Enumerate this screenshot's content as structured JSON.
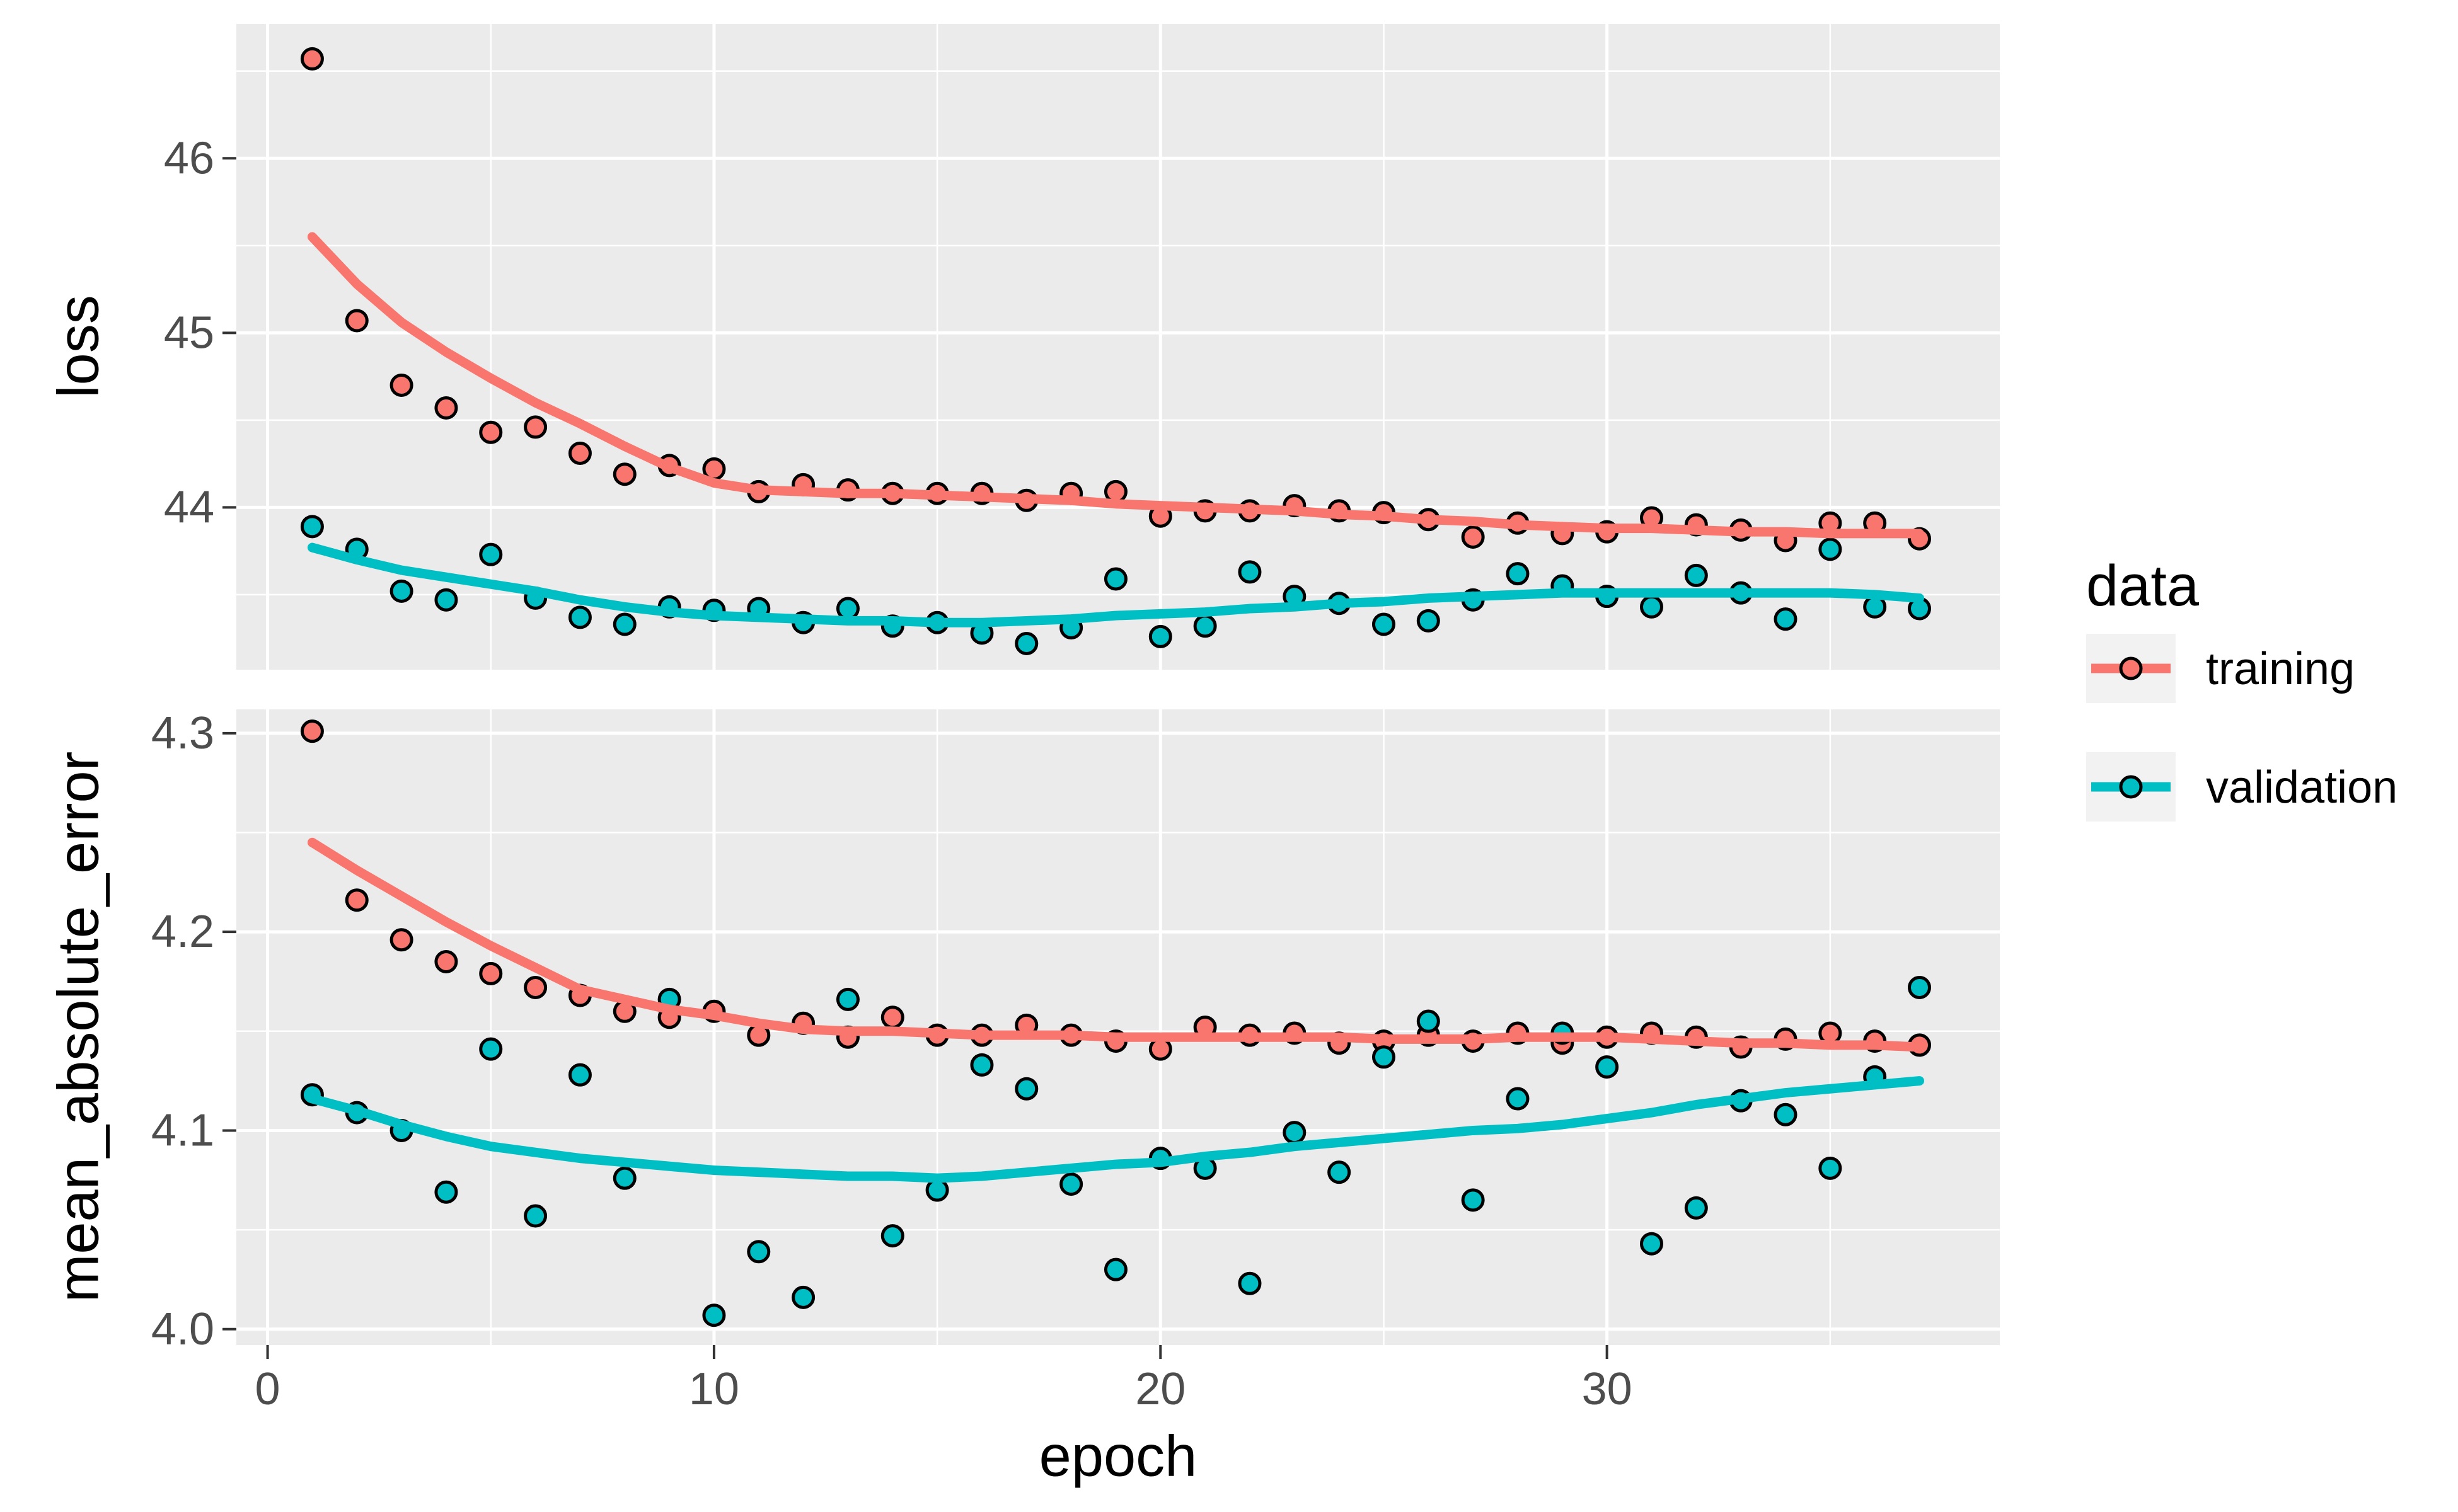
{
  "figure": {
    "background": "#FFFFFF",
    "panel_background": "#EBEBEB",
    "grid_color": "#FFFFFF",
    "tick_mark_color": "#333333",
    "tick_label_color": "#4D4D4D"
  },
  "legend": {
    "title": "data",
    "key_background": "#F2F2F2",
    "items": [
      {
        "label": "training",
        "color": "#F8766D"
      },
      {
        "label": "validation",
        "color": "#00BFC4"
      }
    ]
  },
  "chart_data": {
    "type": "scatter",
    "xlabel": "epoch",
    "x": [
      1,
      2,
      3,
      4,
      5,
      6,
      7,
      8,
      9,
      10,
      11,
      12,
      13,
      14,
      15,
      16,
      17,
      18,
      19,
      20,
      21,
      22,
      23,
      24,
      25,
      26,
      27,
      28,
      29,
      30,
      31,
      32,
      33,
      34,
      35,
      36,
      37
    ],
    "xlim": [
      -0.7,
      38.8
    ],
    "x_tick_values": [
      0,
      10,
      20,
      30
    ],
    "x_tick_labels": [
      "0",
      "10",
      "20",
      "30"
    ],
    "x_minor": [
      5,
      15,
      25,
      35
    ],
    "grid": true,
    "legend_position": "right",
    "facets": [
      {
        "ylabel": "loss",
        "ylim": [
          43.07,
          46.77
        ],
        "y_tick_values": [
          44,
          45,
          46
        ],
        "y_tick_labels": [
          "44",
          "45",
          "46"
        ],
        "y_minor": [
          43.5,
          44.5,
          45.5,
          46.5
        ],
        "series": [
          {
            "name": "training",
            "color": "#F8766D",
            "values": [
              46.57,
              45.07,
              44.7,
              44.57,
              44.43,
              44.46,
              44.31,
              44.19,
              44.24,
              44.22,
              44.09,
              44.13,
              44.1,
              44.08,
              44.08,
              44.08,
              44.04,
              44.08,
              44.09,
              43.95,
              43.98,
              43.98,
              44.01,
              43.98,
              43.97,
              43.93,
              43.83,
              43.91,
              43.85,
              43.86,
              43.94,
              43.9,
              43.87,
              43.81,
              43.91,
              43.91,
              43.82
            ],
            "smooth": [
              45.55,
              45.28,
              45.06,
              44.89,
              44.74,
              44.6,
              44.48,
              44.35,
              44.23,
              44.14,
              44.1,
              44.09,
              44.08,
              44.08,
              44.07,
              44.06,
              44.05,
              44.04,
              44.02,
              44.01,
              44.0,
              43.99,
              43.98,
              43.96,
              43.95,
              43.93,
              43.92,
              43.9,
              43.89,
              43.88,
              43.88,
              43.87,
              43.86,
              43.86,
              43.85,
              43.85,
              43.85
            ]
          },
          {
            "name": "validation",
            "color": "#00BFC4",
            "values": [
              43.89,
              43.76,
              43.52,
              43.47,
              43.73,
              43.48,
              43.37,
              43.33,
              43.43,
              43.41,
              43.42,
              43.34,
              43.42,
              43.32,
              43.34,
              43.28,
              43.22,
              43.31,
              43.59,
              43.26,
              43.32,
              43.63,
              43.49,
              43.45,
              43.33,
              43.35,
              43.47,
              43.62,
              43.55,
              43.49,
              43.43,
              43.61,
              43.51,
              43.36,
              43.76,
              43.43,
              43.42
            ],
            "smooth": [
              43.77,
              43.7,
              43.64,
              43.6,
              43.56,
              43.52,
              43.47,
              43.43,
              43.4,
              43.38,
              43.37,
              43.36,
              43.35,
              43.35,
              43.34,
              43.34,
              43.35,
              43.36,
              43.38,
              43.39,
              43.4,
              43.42,
              43.43,
              43.45,
              43.46,
              43.48,
              43.49,
              43.5,
              43.51,
              43.51,
              43.51,
              43.51,
              43.51,
              43.51,
              43.51,
              43.5,
              43.48
            ]
          }
        ]
      },
      {
        "ylabel": "mean_absolute_error",
        "ylim": [
          3.992,
          4.312
        ],
        "y_tick_values": [
          4.0,
          4.1,
          4.2,
          4.3
        ],
        "y_tick_labels": [
          "4.0",
          "4.1",
          "4.2",
          "4.3"
        ],
        "y_minor": [
          4.05,
          4.15,
          4.25
        ],
        "series": [
          {
            "name": "training",
            "color": "#F8766D",
            "values": [
              4.301,
              4.216,
              4.196,
              4.185,
              4.179,
              4.172,
              4.168,
              4.16,
              4.157,
              4.16,
              4.148,
              4.154,
              4.147,
              4.157,
              4.148,
              4.148,
              4.153,
              4.148,
              4.145,
              4.141,
              4.152,
              4.148,
              4.149,
              4.144,
              4.145,
              4.148,
              4.145,
              4.149,
              4.144,
              4.147,
              4.149,
              4.147,
              4.142,
              4.146,
              4.149,
              4.145,
              4.143
            ],
            "smooth": [
              4.245,
              4.231,
              4.218,
              4.205,
              4.193,
              4.182,
              4.171,
              4.166,
              4.161,
              4.158,
              4.154,
              4.151,
              4.15,
              4.15,
              4.149,
              4.148,
              4.148,
              4.148,
              4.147,
              4.147,
              4.147,
              4.147,
              4.147,
              4.147,
              4.146,
              4.146,
              4.146,
              4.147,
              4.147,
              4.147,
              4.146,
              4.145,
              4.144,
              4.144,
              4.143,
              4.143,
              4.142
            ]
          },
          {
            "name": "validation",
            "color": "#00BFC4",
            "values": [
              4.118,
              4.109,
              4.1,
              4.069,
              4.141,
              4.057,
              4.128,
              4.076,
              4.166,
              4.007,
              4.039,
              4.016,
              4.166,
              4.047,
              4.07,
              4.133,
              4.121,
              4.073,
              4.03,
              4.086,
              4.081,
              4.023,
              4.099,
              4.079,
              4.137,
              4.155,
              4.065,
              4.116,
              4.149,
              4.132,
              4.043,
              4.061,
              4.115,
              4.108,
              4.081,
              4.127,
              4.172
            ],
            "smooth": [
              4.116,
              4.11,
              4.103,
              4.097,
              4.092,
              4.089,
              4.086,
              4.084,
              4.082,
              4.08,
              4.079,
              4.078,
              4.077,
              4.077,
              4.076,
              4.077,
              4.079,
              4.081,
              4.083,
              4.084,
              4.087,
              4.089,
              4.092,
              4.094,
              4.096,
              4.098,
              4.1,
              4.101,
              4.103,
              4.106,
              4.109,
              4.113,
              4.116,
              4.119,
              4.121,
              4.123,
              4.125
            ]
          }
        ]
      }
    ]
  }
}
